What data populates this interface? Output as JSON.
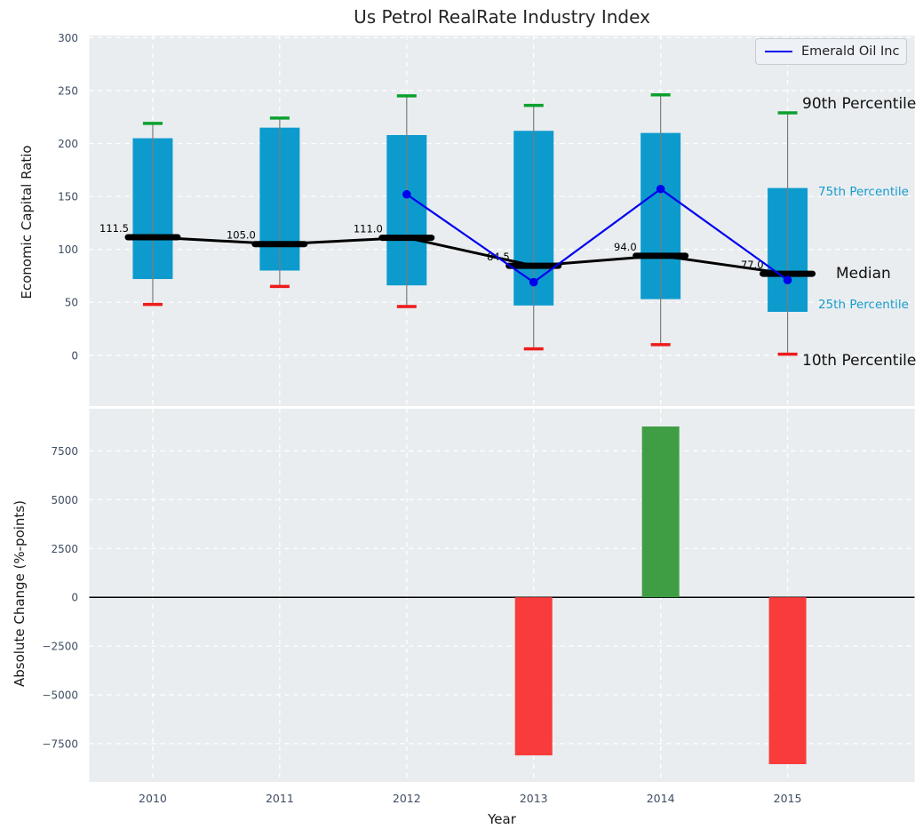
{
  "colors": {
    "axes_bg": "#e9edf0",
    "grid": "#ffffff",
    "box_fill": "#0d9bce",
    "whisker": "#7c7c7c",
    "cap_90th": "#0ca02e",
    "cap_10th": "#ee1b1b",
    "median": "#000000",
    "emerald_line": "#0000ee",
    "bar_positive": "#3f9e44",
    "bar_negative": "#f93b3b",
    "tick_label": "#3e4d63",
    "annotation_cyan": "#189ccc"
  },
  "chart_data": [
    {
      "type": "box",
      "title": "Us Petrol RealRate Industry Index",
      "ylabel": "Economic Capital Ratio",
      "ylim": [
        -48,
        302
      ],
      "yticks": [
        0,
        50,
        100,
        150,
        200,
        250,
        300
      ],
      "grid": "white-dashed",
      "categories": [
        "2010",
        "2011",
        "2012",
        "2013",
        "2014",
        "2015"
      ],
      "boxes": [
        {
          "year": "2010",
          "p10": 48,
          "p25": 72,
          "median": 111.5,
          "p75": 205,
          "p90": 219,
          "label": "111.5"
        },
        {
          "year": "2011",
          "p10": 65,
          "p25": 80,
          "median": 105.0,
          "p75": 215,
          "p90": 224,
          "label": "105.0"
        },
        {
          "year": "2012",
          "p10": 46,
          "p25": 66,
          "median": 111.0,
          "p75": 208,
          "p90": 245,
          "label": "111.0"
        },
        {
          "year": "2013",
          "p10": 6,
          "p25": 47,
          "median": 84.5,
          "p75": 212,
          "p90": 236,
          "label": "84.5"
        },
        {
          "year": "2014",
          "p10": 10,
          "p25": 53,
          "median": 94.0,
          "p75": 210,
          "p90": 246,
          "label": "94.0"
        },
        {
          "year": "2015",
          "p10": 1,
          "p25": 41,
          "median": 77.0,
          "p75": 158,
          "p90": 229,
          "label": "77.0"
        }
      ],
      "line_series": {
        "name": "Emerald Oil Inc",
        "x": [
          "2012",
          "2013",
          "2014",
          "2015"
        ],
        "y": [
          152,
          69,
          157,
          71
        ]
      },
      "legend": {
        "label": "Emerald Oil Inc",
        "position": "upper right"
      },
      "annotations": [
        {
          "text": "90th Percentile",
          "value": 237,
          "style": "large"
        },
        {
          "text": "75th Percentile",
          "value": 154,
          "style": "cyan"
        },
        {
          "text": "Median",
          "value": 77,
          "style": "large"
        },
        {
          "text": "25th Percentile",
          "value": 48,
          "style": "cyan"
        },
        {
          "text": "10th Percentile",
          "value": -5,
          "style": "large"
        }
      ]
    },
    {
      "type": "bar",
      "xlabel": "Year",
      "ylabel": "Absolute Change (%-points)",
      "ylim": [
        -9460,
        9660
      ],
      "yticks": [
        -7500,
        -5000,
        -2500,
        0,
        2500,
        5000,
        7500
      ],
      "grid": "white-dashed",
      "categories": [
        "2010",
        "2011",
        "2012",
        "2013",
        "2014",
        "2015"
      ],
      "values": [
        0,
        0,
        0,
        -8100,
        8750,
        -8550
      ]
    }
  ]
}
